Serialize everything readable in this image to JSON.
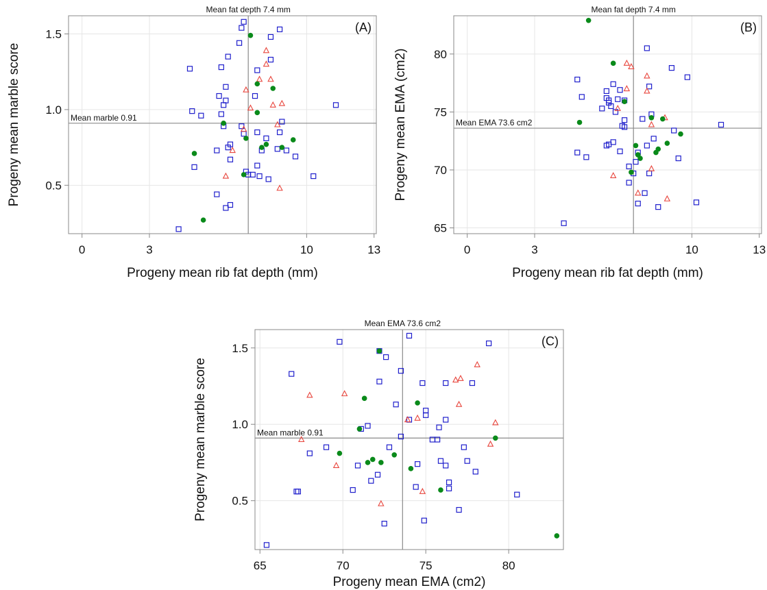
{
  "colors": {
    "blue": "#1f1fcc",
    "red": "#e8453c",
    "green": "#0a8a1a",
    "frame": "#888888",
    "grid": "#e6e6e6"
  },
  "chart_data": [
    {
      "id": "A",
      "type": "scatter",
      "panel_label": "(A)",
      "top_label": "Mean fat depth 7.4 mm",
      "ref_label": "Mean marble 0.91",
      "xlabel": "Progeny mean rib fat depth (mm)",
      "ylabel": "Progeny mean marble score",
      "xlim": [
        -0.6,
        13.1
      ],
      "ylim": [
        0.18,
        1.62
      ],
      "xticks": [
        0,
        3,
        10,
        13
      ],
      "yticks": [
        0.5,
        1.0,
        1.5
      ],
      "ytick_labels": [
        "0.5",
        "1.0",
        "1.5"
      ],
      "vref": 7.4,
      "href": 0.91,
      "series": [
        {
          "marker": "square",
          "color": "blue",
          "points": [
            [
              7.2,
              1.58
            ],
            [
              7.1,
              1.54
            ],
            [
              8.8,
              1.53
            ],
            [
              8.4,
              1.48
            ],
            [
              7.0,
              1.44
            ],
            [
              6.5,
              1.35
            ],
            [
              8.4,
              1.33
            ],
            [
              4.8,
              1.27
            ],
            [
              6.2,
              1.28
            ],
            [
              7.8,
              1.26
            ],
            [
              6.4,
              1.15
            ],
            [
              6.1,
              1.09
            ],
            [
              7.7,
              1.09
            ],
            [
              6.4,
              1.06
            ],
            [
              6.3,
              1.03
            ],
            [
              11.3,
              1.03
            ],
            [
              4.9,
              0.99
            ],
            [
              5.3,
              0.96
            ],
            [
              6.2,
              0.97
            ],
            [
              8.9,
              0.92
            ],
            [
              6.3,
              0.89
            ],
            [
              7.1,
              0.89
            ],
            [
              7.8,
              0.85
            ],
            [
              8.8,
              0.85
            ],
            [
              7.2,
              0.84
            ],
            [
              8.2,
              0.81
            ],
            [
              8.0,
              0.73
            ],
            [
              9.1,
              0.73
            ],
            [
              6.6,
              0.77
            ],
            [
              6.5,
              0.75
            ],
            [
              6.0,
              0.73
            ],
            [
              8.7,
              0.74
            ],
            [
              9.5,
              0.69
            ],
            [
              6.6,
              0.67
            ],
            [
              5.0,
              0.62
            ],
            [
              7.8,
              0.63
            ],
            [
              7.3,
              0.59
            ],
            [
              7.4,
              0.57
            ],
            [
              7.6,
              0.57
            ],
            [
              7.9,
              0.56
            ],
            [
              8.3,
              0.54
            ],
            [
              10.3,
              0.56
            ],
            [
              6.0,
              0.44
            ],
            [
              6.6,
              0.37
            ],
            [
              6.4,
              0.35
            ],
            [
              4.3,
              0.21
            ]
          ]
        },
        {
          "marker": "triangle",
          "color": "red",
          "points": [
            [
              8.2,
              1.39
            ],
            [
              8.2,
              1.3
            ],
            [
              7.9,
              1.2
            ],
            [
              8.4,
              1.2
            ],
            [
              7.3,
              1.13
            ],
            [
              8.5,
              1.03
            ],
            [
              8.9,
              1.04
            ],
            [
              7.5,
              1.01
            ],
            [
              8.7,
              0.9
            ],
            [
              7.2,
              0.87
            ],
            [
              6.7,
              0.73
            ],
            [
              6.4,
              0.56
            ],
            [
              8.8,
              0.48
            ]
          ]
        },
        {
          "marker": "circle",
          "color": "green",
          "points": [
            [
              7.5,
              1.49
            ],
            [
              7.8,
              1.17
            ],
            [
              8.5,
              1.14
            ],
            [
              7.8,
              0.98
            ],
            [
              6.3,
              0.91
            ],
            [
              7.3,
              0.81
            ],
            [
              9.4,
              0.8
            ],
            [
              8.9,
              0.75
            ],
            [
              8.0,
              0.75
            ],
            [
              8.2,
              0.77
            ],
            [
              5.0,
              0.71
            ],
            [
              7.2,
              0.57
            ],
            [
              5.4,
              0.27
            ]
          ]
        }
      ]
    },
    {
      "id": "B",
      "type": "scatter",
      "panel_label": "(B)",
      "top_label": "Mean fat depth 7.4 mm",
      "ref_label": "Mean EMA 73.6 cm2",
      "xlabel": "Progeny mean rib fat depth (mm)",
      "ylabel": "Progeny mean EMA (cm2)",
      "xlim": [
        -0.6,
        13.1
      ],
      "ylim": [
        64.5,
        83.3
      ],
      "xticks": [
        0,
        3,
        10,
        13
      ],
      "yticks": [
        65,
        70,
        75,
        80
      ],
      "ytick_labels": [
        "65",
        "70",
        "75",
        "80"
      ],
      "vref": 7.4,
      "href": 73.6,
      "series": [
        {
          "marker": "square",
          "color": "blue",
          "points": [
            [
              8.0,
              80.5
            ],
            [
              9.1,
              78.8
            ],
            [
              9.8,
              78.0
            ],
            [
              4.9,
              77.8
            ],
            [
              6.5,
              77.4
            ],
            [
              8.1,
              77.2
            ],
            [
              6.2,
              76.8
            ],
            [
              6.8,
              76.9
            ],
            [
              5.1,
              76.3
            ],
            [
              6.2,
              76.2
            ],
            [
              6.3,
              76.0
            ],
            [
              6.7,
              76.1
            ],
            [
              7.0,
              76.0
            ],
            [
              6.3,
              75.8
            ],
            [
              6.4,
              75.5
            ],
            [
              6.0,
              75.3
            ],
            [
              6.6,
              75.0
            ],
            [
              8.2,
              74.8
            ],
            [
              7.8,
              74.4
            ],
            [
              7.0,
              74.3
            ],
            [
              6.9,
              73.8
            ],
            [
              7.0,
              73.7
            ],
            [
              9.2,
              73.4
            ],
            [
              11.3,
              73.9
            ],
            [
              8.3,
              72.7
            ],
            [
              8.0,
              72.1
            ],
            [
              6.3,
              72.2
            ],
            [
              6.5,
              72.4
            ],
            [
              6.2,
              72.1
            ],
            [
              6.8,
              71.6
            ],
            [
              7.6,
              71.5
            ],
            [
              9.4,
              71.0
            ],
            [
              4.9,
              71.5
            ],
            [
              5.3,
              71.1
            ],
            [
              7.5,
              70.7
            ],
            [
              7.2,
              70.3
            ],
            [
              8.1,
              69.7
            ],
            [
              7.4,
              69.7
            ],
            [
              7.2,
              68.9
            ],
            [
              7.9,
              68.0
            ],
            [
              7.6,
              67.1
            ],
            [
              8.5,
              66.8
            ],
            [
              10.2,
              67.2
            ],
            [
              4.3,
              65.4
            ]
          ]
        },
        {
          "marker": "triangle",
          "color": "red",
          "points": [
            [
              7.1,
              79.2
            ],
            [
              7.3,
              78.9
            ],
            [
              8.0,
              78.1
            ],
            [
              7.1,
              77.0
            ],
            [
              8.0,
              76.8
            ],
            [
              6.7,
              75.3
            ],
            [
              8.2,
              73.9
            ],
            [
              8.8,
              74.5
            ],
            [
              6.5,
              69.5
            ],
            [
              7.6,
              68.0
            ],
            [
              8.2,
              70.1
            ],
            [
              8.9,
              67.5
            ]
          ]
        },
        {
          "marker": "circle",
          "color": "green",
          "points": [
            [
              5.4,
              82.9
            ],
            [
              6.5,
              79.2
            ],
            [
              7.0,
              75.9
            ],
            [
              8.2,
              74.5
            ],
            [
              8.7,
              74.4
            ],
            [
              5.0,
              74.1
            ],
            [
              9.5,
              73.1
            ],
            [
              7.5,
              72.1
            ],
            [
              8.9,
              72.3
            ],
            [
              8.5,
              71.8
            ],
            [
              8.4,
              71.5
            ],
            [
              7.6,
              71.3
            ],
            [
              7.7,
              71.0
            ],
            [
              7.3,
              69.8
            ]
          ]
        }
      ]
    },
    {
      "id": "C",
      "type": "scatter",
      "panel_label": "(C)",
      "top_label": "Mean EMA 73.6 cm2",
      "ref_label": "Mean marble 0.91",
      "xlabel": "Progeny mean EMA (cm2)",
      "ylabel": "Progeny mean marble score",
      "xlim": [
        64.7,
        83.3
      ],
      "ylim": [
        0.18,
        1.62
      ],
      "xticks": [
        65,
        70,
        75,
        80
      ],
      "yticks": [
        0.5,
        1.0,
        1.5
      ],
      "ytick_labels": [
        "0.5",
        "1.0",
        "1.5"
      ],
      "vref": 73.6,
      "href": 0.91,
      "series": [
        {
          "marker": "square",
          "color": "blue",
          "points": [
            [
              74.0,
              1.58
            ],
            [
              69.8,
              1.54
            ],
            [
              78.8,
              1.53
            ],
            [
              72.2,
              1.48
            ],
            [
              72.6,
              1.44
            ],
            [
              66.9,
              1.33
            ],
            [
              73.5,
              1.35
            ],
            [
              72.2,
              1.28
            ],
            [
              74.8,
              1.27
            ],
            [
              76.2,
              1.27
            ],
            [
              77.8,
              1.27
            ],
            [
              73.2,
              1.13
            ],
            [
              75.0,
              1.09
            ],
            [
              75.0,
              1.06
            ],
            [
              76.2,
              1.03
            ],
            [
              74.0,
              1.03
            ],
            [
              71.5,
              0.99
            ],
            [
              75.8,
              0.98
            ],
            [
              71.1,
              0.97
            ],
            [
              73.5,
              0.92
            ],
            [
              75.4,
              0.9
            ],
            [
              75.7,
              0.9
            ],
            [
              77.3,
              0.85
            ],
            [
              72.8,
              0.85
            ],
            [
              69.0,
              0.85
            ],
            [
              68.0,
              0.81
            ],
            [
              75.9,
              0.76
            ],
            [
              77.5,
              0.76
            ],
            [
              74.5,
              0.74
            ],
            [
              70.9,
              0.73
            ],
            [
              76.2,
              0.73
            ],
            [
              78.0,
              0.69
            ],
            [
              72.1,
              0.67
            ],
            [
              71.7,
              0.63
            ],
            [
              76.4,
              0.62
            ],
            [
              74.4,
              0.59
            ],
            [
              76.4,
              0.58
            ],
            [
              70.6,
              0.57
            ],
            [
              80.5,
              0.54
            ],
            [
              67.2,
              0.56
            ],
            [
              67.3,
              0.56
            ],
            [
              77.0,
              0.44
            ],
            [
              74.9,
              0.37
            ],
            [
              72.5,
              0.35
            ],
            [
              65.4,
              0.21
            ]
          ]
        },
        {
          "marker": "triangle",
          "color": "red",
          "points": [
            [
              78.1,
              1.39
            ],
            [
              77.1,
              1.3
            ],
            [
              76.8,
              1.29
            ],
            [
              68.0,
              1.19
            ],
            [
              70.1,
              1.2
            ],
            [
              77.0,
              1.13
            ],
            [
              74.5,
              1.04
            ],
            [
              73.9,
              1.03
            ],
            [
              79.2,
              1.01
            ],
            [
              67.5,
              0.9
            ],
            [
              78.9,
              0.87
            ],
            [
              69.6,
              0.73
            ],
            [
              74.8,
              0.56
            ],
            [
              72.3,
              0.48
            ]
          ]
        },
        {
          "marker": "circle",
          "color": "green",
          "points": [
            [
              72.2,
              1.48
            ],
            [
              71.3,
              1.17
            ],
            [
              74.5,
              1.14
            ],
            [
              71.0,
              0.97
            ],
            [
              79.2,
              0.91
            ],
            [
              69.8,
              0.81
            ],
            [
              73.1,
              0.8
            ],
            [
              71.8,
              0.77
            ],
            [
              72.3,
              0.75
            ],
            [
              71.5,
              0.75
            ],
            [
              74.1,
              0.71
            ],
            [
              75.9,
              0.57
            ],
            [
              82.9,
              0.27
            ]
          ]
        }
      ]
    }
  ]
}
